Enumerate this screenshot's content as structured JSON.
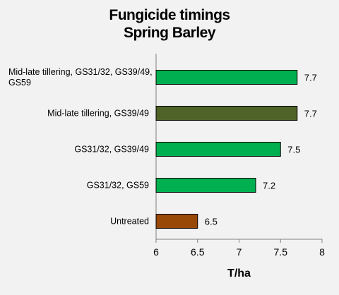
{
  "chart_data": {
    "type": "bar",
    "orientation": "horizontal",
    "title": "Fungicide timings",
    "subtitle": "Spring Barley",
    "xlabel": "T/ha",
    "ylabel": "",
    "xlim": [
      6,
      8
    ],
    "x_ticks": [
      "6",
      "6.5",
      "7",
      "7.5",
      "8"
    ],
    "grid": false,
    "legend": "none",
    "categories": [
      [
        "Mid-late tillering, GS31/32, GS39/49,",
        "GS59"
      ],
      [
        "Mid-late tillering, GS39/49"
      ],
      [
        "GS31/32, GS39/49"
      ],
      [
        "GS31/32, GS59"
      ],
      [
        "Untreated"
      ]
    ],
    "values": [
      7.7,
      7.7,
      7.5,
      7.2,
      6.5
    ],
    "value_labels": [
      "7.7",
      "7.7",
      "7.5",
      "7.2",
      "6.5"
    ],
    "bar_colors": [
      "#00b050",
      "#4f6228",
      "#00b050",
      "#00b050",
      "#984807"
    ]
  }
}
